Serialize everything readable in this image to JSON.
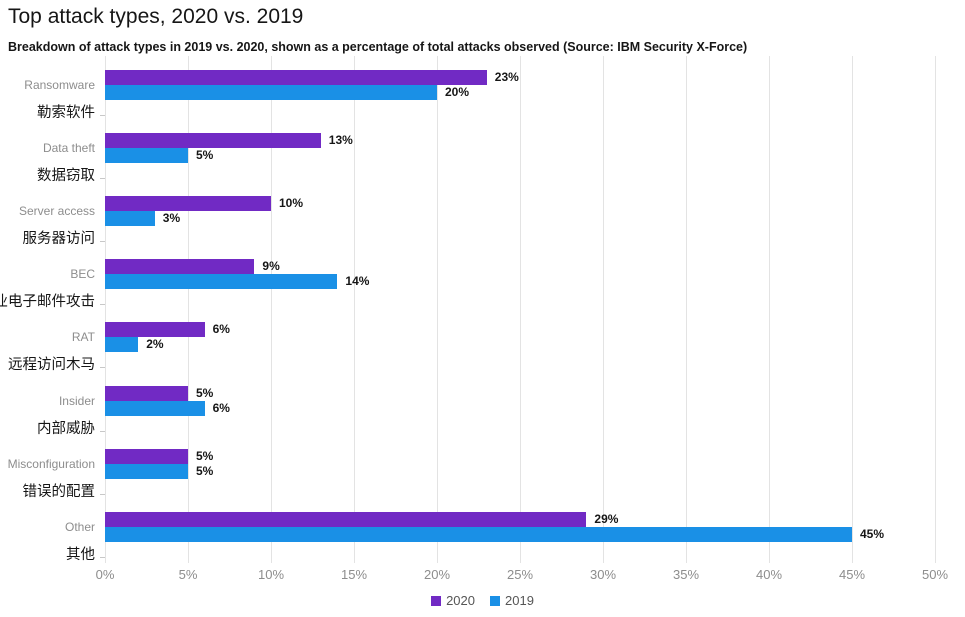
{
  "chart_data": {
    "type": "bar",
    "orientation": "horizontal",
    "title": "Top attack types, 2020 vs. 2019",
    "subtitle": "Breakdown of attack types in 2019 vs. 2020, shown as a percentage of total attacks observed (Source: IBM Security X-Force)",
    "categories": [
      {
        "en": "Ransomware",
        "zh": "勒索软件"
      },
      {
        "en": "Data theft",
        "zh": "数据窃取"
      },
      {
        "en": "Server access",
        "zh": "服务器访问"
      },
      {
        "en": "BEC",
        "zh": "商业电子邮件攻击"
      },
      {
        "en": "RAT",
        "zh": "远程访问木马"
      },
      {
        "en": "Insider",
        "zh": "内部威胁"
      },
      {
        "en": "Misconfiguration",
        "zh": "错误的配置"
      },
      {
        "en": "Other",
        "zh": "其他"
      }
    ],
    "series": [
      {
        "name": "2020",
        "color": "#712ac4",
        "values": [
          23,
          13,
          10,
          9,
          6,
          5,
          5,
          29
        ]
      },
      {
        "name": "2019",
        "color": "#1a90e6",
        "values": [
          20,
          5,
          3,
          14,
          2,
          6,
          5,
          45
        ]
      }
    ],
    "value_label_format": "{v}%",
    "xlabel": "",
    "ylabel": "",
    "xlim": [
      0,
      50
    ],
    "x_ticks": [
      "0%",
      "5%",
      "10%",
      "15%",
      "20%",
      "25%",
      "30%",
      "35%",
      "40%",
      "45%",
      "50%"
    ],
    "grid": "vertical",
    "legend_position": "bottom-center",
    "colors": {
      "text_primary": "#161616",
      "text_secondary": "#8d8d8d",
      "legend_text": "#565656",
      "gridline": "#e3e3e3"
    }
  }
}
